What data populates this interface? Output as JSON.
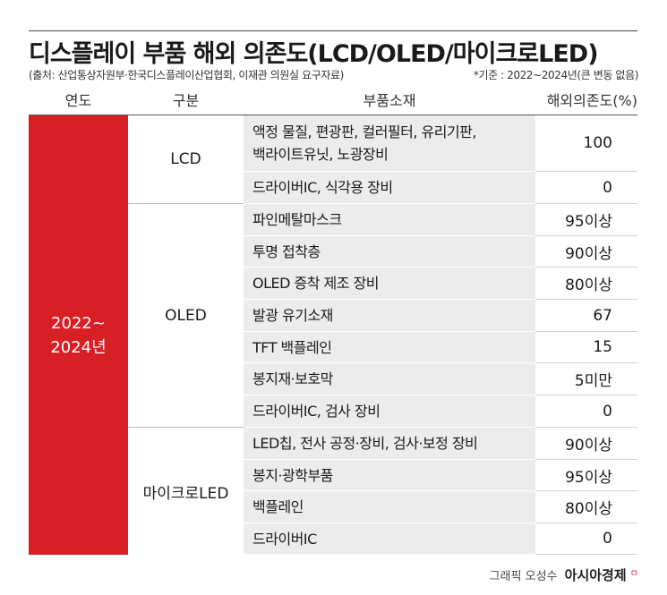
{
  "title": "디스플레이 부품 해외 의존도(LCD/OLED/마이크로LED)",
  "source": "(출처: 산업통상자원부·한국디스플레이산업협회, 이재관 의원실 요구자료)",
  "basis": "*기준 : 2022~2024년(큰 변동 없음)",
  "headers": {
    "year": "연도",
    "category": "구분",
    "parts": "부품소재",
    "dependency": "해외의존도(%)"
  },
  "year_label": "2022~\n2024년",
  "categories": [
    "LCD",
    "OLED",
    "마이크로LED"
  ],
  "rows": [
    {
      "part": "액정 물질, 편광판, 컬러필터, 유리기판,\n백라이트유닛, 노광장비",
      "value": "100"
    },
    {
      "part": "드라이버IC, 식각용 장비",
      "value": "0"
    },
    {
      "part": "파인메탈마스크",
      "value": "95이상"
    },
    {
      "part": "투명 접착층",
      "value": "90이상"
    },
    {
      "part": "OLED 증착 제조 장비",
      "value": "80이상"
    },
    {
      "part": "발광 유기소재",
      "value": "67"
    },
    {
      "part": "TFT 백플레인",
      "value": "15"
    },
    {
      "part": "봉지재·보호막",
      "value": "5미만"
    },
    {
      "part": "드라이버IC, 검사 장비",
      "value": "0"
    },
    {
      "part": "LED칩, 전사 공정·장비, 검사·보정 장비",
      "value": "90이상"
    },
    {
      "part": "봉지·광학부품",
      "value": "95이상"
    },
    {
      "part": "백플레인",
      "value": "80이상"
    },
    {
      "part": "드라이버IC",
      "value": "0"
    }
  ],
  "footer": {
    "credit": "그래픽 오성수",
    "brand": "아시아경제",
    "mark": "ㅁ"
  },
  "colors": {
    "accent": "#d81f26",
    "part_bg": "#ececec"
  }
}
